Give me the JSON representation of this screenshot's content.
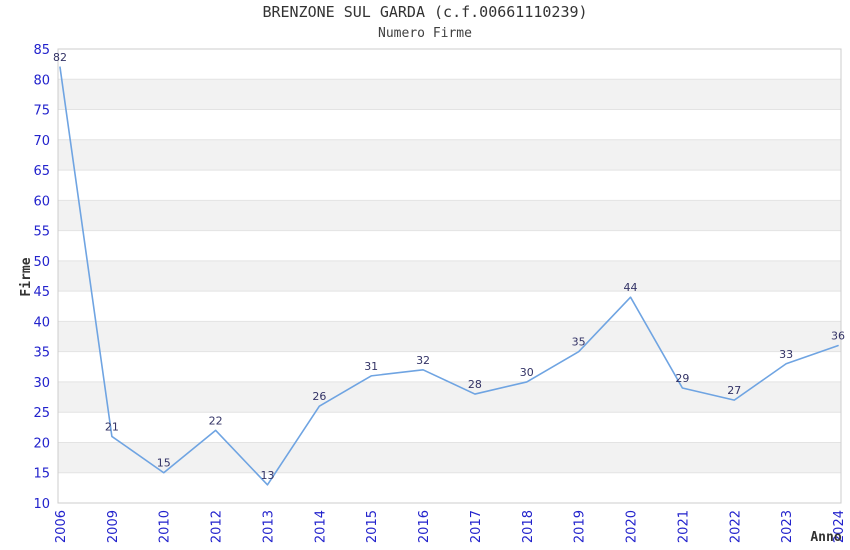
{
  "chart_data": {
    "type": "line",
    "title": "BRENZONE SUL GARDA (c.f.00661110239)",
    "subtitle": "Numero Firme",
    "xlabel": "Anno",
    "ylabel": "Firme",
    "categories": [
      "2006",
      "2009",
      "2010",
      "2012",
      "2013",
      "2014",
      "2015",
      "2016",
      "2017",
      "2018",
      "2019",
      "2020",
      "2021",
      "2022",
      "2023",
      "2024"
    ],
    "values": [
      82,
      21,
      15,
      22,
      13,
      26,
      31,
      32,
      28,
      30,
      35,
      44,
      29,
      27,
      33,
      36
    ],
    "ylim": [
      10,
      85
    ],
    "ytick_step": 5,
    "grid": "horizontal-bands",
    "legend": "none",
    "point_labels": true,
    "colors": {
      "line": "#6fa4e2",
      "point_label": "#333366",
      "tick_label": "#2222cc",
      "band_fill": "#f2f2f2",
      "grid_line": "#e3e3e3",
      "plot_border": "#cccccc",
      "title_text": "#333333",
      "axis_title": "#333333",
      "background": "#ffffff"
    }
  }
}
